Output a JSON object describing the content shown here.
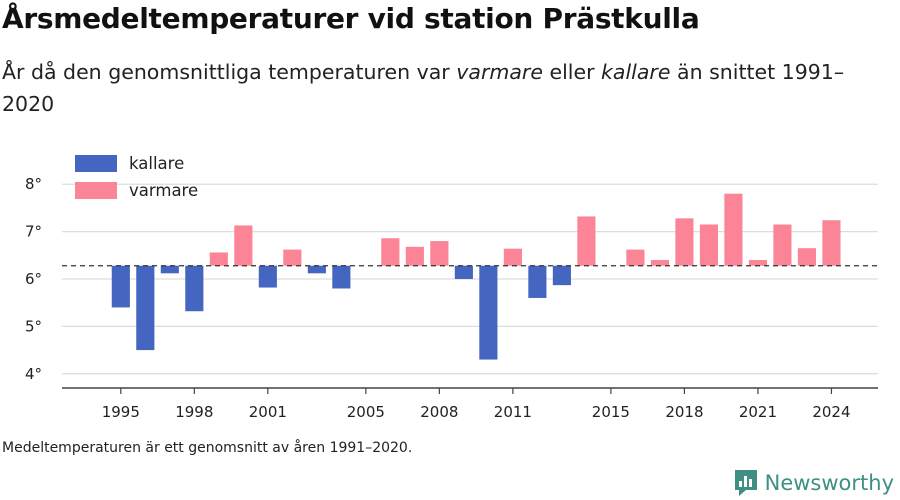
{
  "title": "Årsmedeltemperaturer vid station Prästkulla",
  "subtitle": {
    "part1": "År då den genomsnittliga temperaturen var ",
    "warm_word": "varmare",
    "part2": " eller ",
    "cold_word": "kallare",
    "part3": " än snittet 1991–2020"
  },
  "footnote": "Medeltemperaturen är ett genomsnitt av åren 1991–2020.",
  "brand": "Newsworthy",
  "colors": {
    "colder": "#4566c0",
    "warmer": "#fb8496",
    "brand": "#3f8f83",
    "grid": "#dddddd",
    "axis": "#444444"
  },
  "chart_data": {
    "type": "bar",
    "baseline": 6.28,
    "ylim": [
      3.7,
      8.3
    ],
    "ytick_values": [
      4,
      5,
      6,
      7,
      8
    ],
    "ytick_labels": [
      "4°",
      "5°",
      "6°",
      "7°",
      "8°"
    ],
    "xtick_values": [
      1995,
      1998,
      2001,
      2005,
      2008,
      2011,
      2015,
      2018,
      2021,
      2024
    ],
    "xlim": [
      1992.6,
      2025.9
    ],
    "grid": true,
    "legend_position": "top-left",
    "legend": [
      {
        "label": "kallare",
        "color": "#4566c0"
      },
      {
        "label": "varmare",
        "color": "#fb8496"
      }
    ],
    "x": [
      1995,
      1996,
      1997,
      1998,
      1999,
      2000,
      2001,
      2002,
      2003,
      2004,
      2006,
      2007,
      2008,
      2009,
      2010,
      2011,
      2012,
      2013,
      2014,
      2016,
      2017,
      2018,
      2019,
      2020,
      2021,
      2022,
      2023,
      2024
    ],
    "values": [
      5.4,
      4.5,
      6.12,
      5.32,
      6.56,
      7.13,
      5.82,
      6.62,
      6.12,
      5.8,
      6.86,
      6.68,
      6.8,
      6.0,
      4.3,
      6.64,
      5.6,
      5.87,
      7.32,
      6.62,
      6.4,
      7.28,
      7.15,
      7.8,
      6.4,
      7.15,
      6.65,
      7.24
    ]
  }
}
